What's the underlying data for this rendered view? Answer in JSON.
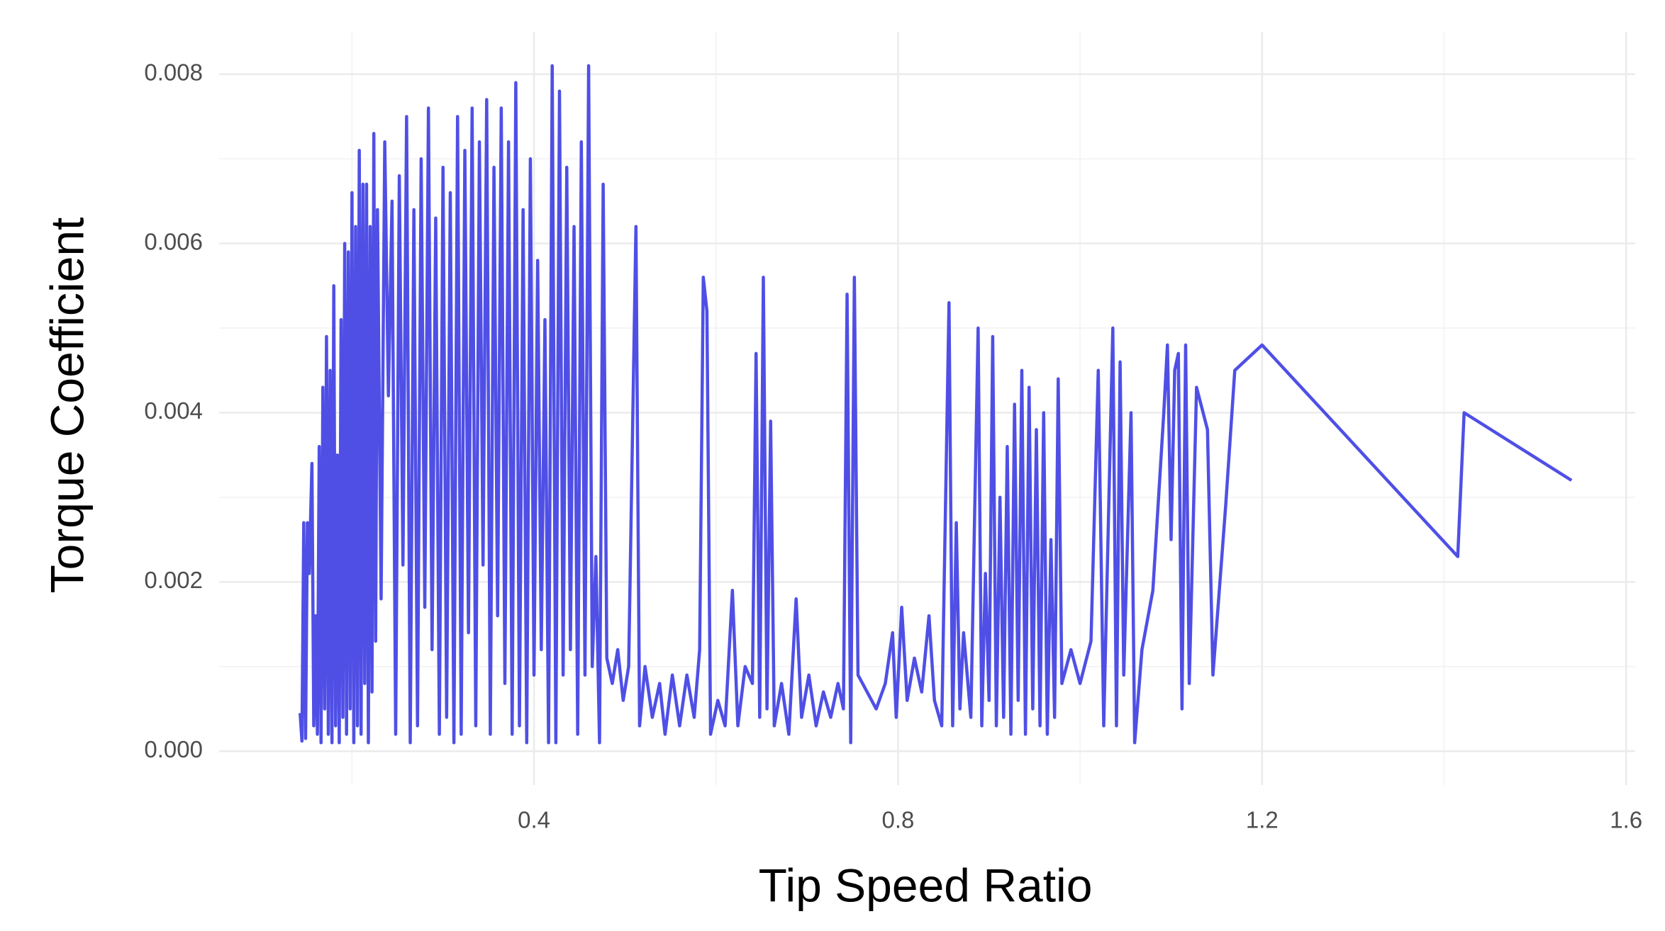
{
  "chart_data": {
    "type": "line",
    "xlabel": "Tip Speed Ratio",
    "ylabel": "Torque Coefficient",
    "color": "#4f4fe6",
    "grid": true,
    "xlim": [
      0.054,
      1.61
    ],
    "ylim": [
      -0.0004,
      0.0085
    ],
    "xticks": [
      0.4,
      0.8,
      1.2,
      1.6
    ],
    "xminorticks": [
      0.2,
      0.6,
      1.0,
      1.4
    ],
    "yticks": [
      {
        "value": 0,
        "label": "0.000"
      },
      0.002,
      0.004,
      0.006,
      0.008
    ],
    "yminorticks": [
      0.001,
      0.003,
      0.005,
      0.007
    ],
    "x": [
      0.143,
      0.145,
      0.147,
      0.149,
      0.151,
      0.153,
      0.156,
      0.158,
      0.16,
      0.162,
      0.164,
      0.166,
      0.168,
      0.17,
      0.172,
      0.174,
      0.176,
      0.178,
      0.18,
      0.182,
      0.184,
      0.186,
      0.188,
      0.19,
      0.192,
      0.194,
      0.196,
      0.198,
      0.2,
      0.202,
      0.204,
      0.206,
      0.208,
      0.21,
      0.212,
      0.214,
      0.216,
      0.218,
      0.22,
      0.222,
      0.224,
      0.226,
      0.228,
      0.232,
      0.236,
      0.24,
      0.244,
      0.248,
      0.252,
      0.256,
      0.26,
      0.264,
      0.268,
      0.272,
      0.276,
      0.28,
      0.284,
      0.288,
      0.292,
      0.296,
      0.3,
      0.304,
      0.308,
      0.312,
      0.316,
      0.32,
      0.324,
      0.328,
      0.332,
      0.336,
      0.34,
      0.344,
      0.348,
      0.352,
      0.356,
      0.36,
      0.364,
      0.368,
      0.372,
      0.376,
      0.38,
      0.384,
      0.388,
      0.392,
      0.396,
      0.4,
      0.404,
      0.408,
      0.412,
      0.416,
      0.42,
      0.424,
      0.428,
      0.432,
      0.436,
      0.44,
      0.444,
      0.448,
      0.452,
      0.456,
      0.46,
      0.464,
      0.468,
      0.472,
      0.476,
      0.48,
      0.486,
      0.492,
      0.498,
      0.504,
      0.512,
      0.516,
      0.522,
      0.53,
      0.538,
      0.544,
      0.552,
      0.56,
      0.568,
      0.576,
      0.582,
      0.586,
      0.59,
      0.594,
      0.602,
      0.61,
      0.618,
      0.624,
      0.632,
      0.64,
      0.644,
      0.648,
      0.652,
      0.656,
      0.66,
      0.664,
      0.672,
      0.68,
      0.688,
      0.694,
      0.702,
      0.71,
      0.718,
      0.726,
      0.734,
      0.74,
      0.744,
      0.748,
      0.752,
      0.756,
      0.766,
      0.776,
      0.786,
      0.794,
      0.798,
      0.804,
      0.81,
      0.818,
      0.826,
      0.834,
      0.84,
      0.848,
      0.856,
      0.86,
      0.864,
      0.868,
      0.872,
      0.88,
      0.888,
      0.892,
      0.896,
      0.9,
      0.904,
      0.908,
      0.912,
      0.916,
      0.92,
      0.924,
      0.928,
      0.932,
      0.936,
      0.94,
      0.944,
      0.948,
      0.952,
      0.956,
      0.96,
      0.964,
      0.968,
      0.972,
      0.976,
      0.98,
      0.99,
      1.0,
      1.012,
      1.02,
      1.026,
      1.036,
      1.04,
      1.044,
      1.048,
      1.056,
      1.06,
      1.068,
      1.08,
      1.092,
      1.096,
      1.1,
      1.104,
      1.108,
      1.112,
      1.116,
      1.12,
      1.128,
      1.14,
      1.146,
      1.16,
      1.17,
      1.2,
      1.415,
      1.422,
      1.54
    ],
    "values": [
      0.00045,
      0.00012,
      0.0027,
      0.00015,
      0.0027,
      0.0021,
      0.0034,
      0.0003,
      0.0016,
      0.0002,
      0.0036,
      0.0001,
      0.0043,
      0.0005,
      0.0049,
      0.0002,
      0.0045,
      0.0001,
      0.0055,
      0.0003,
      0.0035,
      0.0001,
      0.0051,
      0.0004,
      0.006,
      0.0002,
      0.0059,
      0.0005,
      0.0066,
      0.0001,
      0.0062,
      0.0003,
      0.0071,
      0.0002,
      0.0067,
      0.0008,
      0.0067,
      0.0001,
      0.0062,
      0.0007,
      0.0073,
      0.0013,
      0.0064,
      0.0018,
      0.0072,
      0.0042,
      0.0065,
      0.0002,
      0.0068,
      0.0022,
      0.0075,
      0.0001,
      0.0064,
      0.0003,
      0.007,
      0.0017,
      0.0076,
      0.0012,
      0.0063,
      0.0002,
      0.0069,
      0.0004,
      0.0066,
      0.0001,
      0.0075,
      0.0002,
      0.0071,
      0.0014,
      0.0076,
      0.0003,
      0.0072,
      0.0022,
      0.0077,
      0.0002,
      0.0069,
      0.0016,
      0.0076,
      0.0008,
      0.0072,
      0.0002,
      0.0079,
      0.0003,
      0.0064,
      0.0001,
      0.007,
      0.0009,
      0.0058,
      0.0012,
      0.0051,
      0.0001,
      0.0081,
      0.0001,
      0.0078,
      0.0009,
      0.0069,
      0.0012,
      0.0062,
      0.0002,
      0.0072,
      0.0009,
      0.0081,
      0.001,
      0.0023,
      0.0001,
      0.0067,
      0.0011,
      0.0008,
      0.0012,
      0.0006,
      0.001,
      0.0062,
      0.0003,
      0.001,
      0.0004,
      0.0008,
      0.0002,
      0.0009,
      0.0003,
      0.0009,
      0.0004,
      0.0012,
      0.0056,
      0.0052,
      0.0002,
      0.0006,
      0.0003,
      0.0019,
      0.0003,
      0.001,
      0.0008,
      0.0047,
      0.0004,
      0.0056,
      0.0005,
      0.0039,
      0.0003,
      0.0008,
      0.0002,
      0.0018,
      0.0004,
      0.0009,
      0.0003,
      0.0007,
      0.0004,
      0.0008,
      0.0005,
      0.0054,
      0.0001,
      0.0056,
      0.0009,
      0.0007,
      0.0005,
      0.0008,
      0.0014,
      0.0004,
      0.0017,
      0.0006,
      0.0011,
      0.0007,
      0.0016,
      0.0006,
      0.0003,
      0.0053,
      0.0003,
      0.0027,
      0.0005,
      0.0014,
      0.0004,
      0.005,
      0.0003,
      0.0021,
      0.0006,
      0.0049,
      0.0003,
      0.003,
      0.0004,
      0.0036,
      0.0002,
      0.0041,
      0.0006,
      0.0045,
      0.0002,
      0.0043,
      0.0005,
      0.0038,
      0.0003,
      0.004,
      0.0002,
      0.0025,
      0.0004,
      0.0044,
      0.0008,
      0.0012,
      0.0008,
      0.0013,
      0.0045,
      0.0003,
      0.005,
      0.0003,
      0.0046,
      0.0009,
      0.004,
      0.0001,
      0.0012,
      0.0019,
      0.004,
      0.0048,
      0.0025,
      0.0045,
      0.0047,
      0.0005,
      0.0048,
      0.0008,
      0.0043,
      0.0038,
      0.0009,
      0.0029,
      0.0045,
      0.0048,
      0.0023,
      0.004,
      0.0032
    ]
  }
}
